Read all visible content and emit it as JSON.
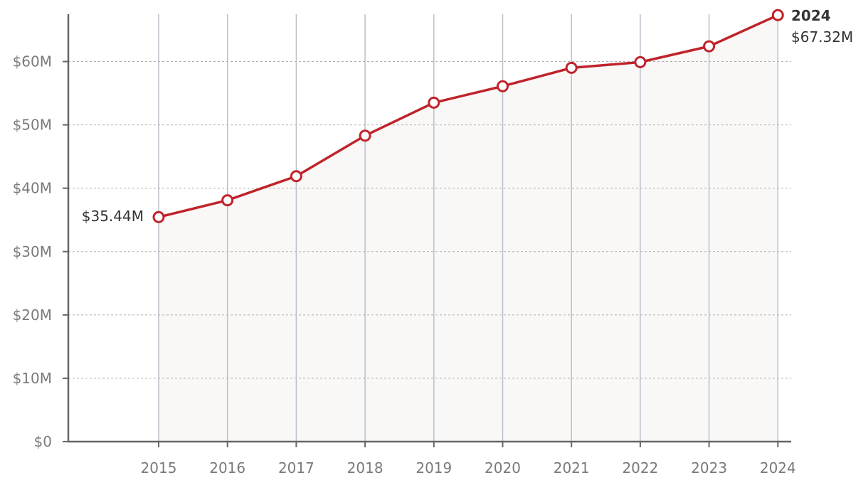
{
  "chart_data": {
    "type": "area",
    "x": [
      "2015",
      "2016",
      "2017",
      "2018",
      "2019",
      "2020",
      "2021",
      "2022",
      "2023",
      "2024"
    ],
    "series": [
      {
        "values": [
          35.44,
          38.1,
          41.9,
          48.3,
          53.5,
          56.1,
          59.0,
          59.9,
          62.4,
          67.32
        ]
      }
    ],
    "ylim": [
      0,
      70
    ],
    "yticks": [
      0,
      10,
      20,
      30,
      40,
      50,
      60
    ],
    "ytick_labels": [
      "$0",
      "$10M",
      "$20M",
      "$30M",
      "$40M",
      "$50M",
      "$60M"
    ],
    "annotations": {
      "start_value": "$35.44M",
      "end_year": "2024",
      "end_value": "$67.32M"
    },
    "grid": {
      "vertical": true,
      "horizontal_dashed": true
    },
    "colors": {
      "line": "#c0232b",
      "area": "#f9f8f7",
      "vgrid": "#b8c0c9",
      "hgrid": "#b0b0b0",
      "axis": "#666666"
    }
  }
}
